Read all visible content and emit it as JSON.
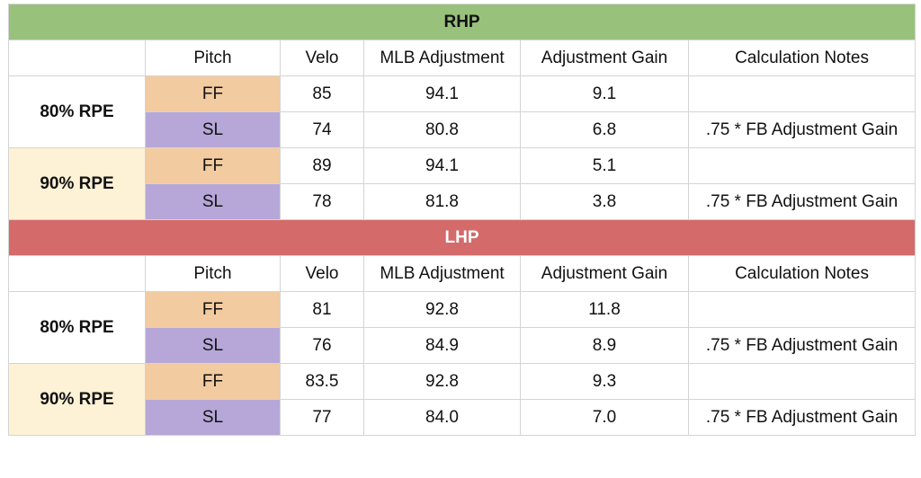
{
  "sections": [
    {
      "title": "RHP",
      "headers": [
        "Pitch",
        "Velo",
        "MLB Adjustment",
        "Adjustment Gain",
        "Calculation Notes"
      ],
      "groups": [
        {
          "label": "80% RPE",
          "rows": [
            {
              "pitch": "FF",
              "velo": "85",
              "mlb": "94.1",
              "gain": "9.1",
              "notes": ""
            },
            {
              "pitch": "SL",
              "velo": "74",
              "mlb": "80.8",
              "gain": "6.8",
              "notes": ".75 * FB Adjustment Gain"
            }
          ]
        },
        {
          "label": "90% RPE",
          "rows": [
            {
              "pitch": "FF",
              "velo": "89",
              "mlb": "94.1",
              "gain": "5.1",
              "notes": ""
            },
            {
              "pitch": "SL",
              "velo": "78",
              "mlb": "81.8",
              "gain": "3.8",
              "notes": ".75 * FB Adjustment Gain"
            }
          ]
        }
      ]
    },
    {
      "title": "LHP",
      "headers": [
        "Pitch",
        "Velo",
        "MLB Adjustment",
        "Adjustment Gain",
        "Calculation Notes"
      ],
      "groups": [
        {
          "label": "80% RPE",
          "rows": [
            {
              "pitch": "FF",
              "velo": "81",
              "mlb": "92.8",
              "gain": "11.8",
              "notes": ""
            },
            {
              "pitch": "SL",
              "velo": "76",
              "mlb": "84.9",
              "gain": "8.9",
              "notes": ".75 * FB Adjustment Gain"
            }
          ]
        },
        {
          "label": "90% RPE",
          "rows": [
            {
              "pitch": "FF",
              "velo": "83.5",
              "mlb": "92.8",
              "gain": "9.3",
              "notes": ""
            },
            {
              "pitch": "SL",
              "velo": "77",
              "mlb": "84.0",
              "gain": "7.0",
              "notes": ".75 * FB Adjustment Gain"
            }
          ]
        }
      ]
    }
  ],
  "colors": {
    "rhp_banner": "#98c17c",
    "lhp_banner": "#d46a6a",
    "ff_cell": "#f2cba0",
    "sl_cell": "#b6a7d8",
    "rpe90_cell": "#fdf1d6"
  }
}
